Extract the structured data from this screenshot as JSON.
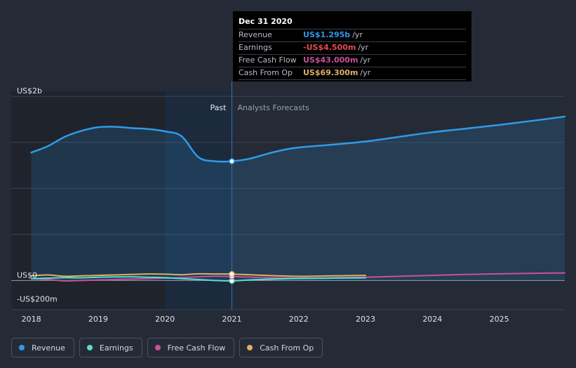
{
  "chart_data": {
    "type": "area",
    "divider_x": 2021.0,
    "past_label": "Past",
    "forecast_label": "Analysts Forecasts",
    "xlim": [
      2017.7,
      2025.98
    ],
    "ylim": [
      -318,
      2055
    ],
    "y_tick_labels": [
      {
        "value": 2000,
        "label": "US$2b"
      },
      {
        "value": 0,
        "label": "US$0"
      },
      {
        "value": -200,
        "label": "-US$200m"
      }
    ],
    "gridlines": [
      2000,
      1500,
      1000,
      500,
      0
    ],
    "x_ticks": [
      2018,
      2019,
      2020,
      2021,
      2022,
      2023,
      2024,
      2025
    ],
    "x_tick_labels": [
      "2018",
      "2019",
      "2020",
      "2021",
      "2022",
      "2023",
      "2024",
      "2025"
    ],
    "series": [
      {
        "name": "Revenue",
        "color": "#2f9be8",
        "points": [
          [
            2018.0,
            1390
          ],
          [
            2018.25,
            1460
          ],
          [
            2018.5,
            1560
          ],
          [
            2018.75,
            1625
          ],
          [
            2019.0,
            1665
          ],
          [
            2019.25,
            1670
          ],
          [
            2019.5,
            1655
          ],
          [
            2019.75,
            1645
          ],
          [
            2020.0,
            1620
          ],
          [
            2020.25,
            1565
          ],
          [
            2020.5,
            1340
          ],
          [
            2020.75,
            1295
          ],
          [
            2021.0,
            1295
          ],
          [
            2021.25,
            1320
          ],
          [
            2021.5,
            1370
          ],
          [
            2021.75,
            1415
          ],
          [
            2022.0,
            1445
          ],
          [
            2022.5,
            1475
          ],
          [
            2023.0,
            1510
          ],
          [
            2023.5,
            1560
          ],
          [
            2024.0,
            1610
          ],
          [
            2024.5,
            1650
          ],
          [
            2025.0,
            1690
          ],
          [
            2025.5,
            1735
          ],
          [
            2025.98,
            1780
          ]
        ]
      },
      {
        "name": "Earnings",
        "color": "#55e0cf",
        "points": [
          [
            2018.0,
            20
          ],
          [
            2018.25,
            25
          ],
          [
            2018.5,
            30
          ],
          [
            2018.75,
            28
          ],
          [
            2019.0,
            35
          ],
          [
            2019.25,
            38
          ],
          [
            2019.5,
            40
          ],
          [
            2019.75,
            35
          ],
          [
            2020.0,
            30
          ],
          [
            2020.25,
            20
          ],
          [
            2020.5,
            10
          ],
          [
            2020.75,
            0
          ],
          [
            2021.0,
            -4.5
          ],
          [
            2021.25,
            5
          ],
          [
            2021.5,
            12
          ],
          [
            2021.75,
            18
          ],
          [
            2022.0,
            22
          ],
          [
            2022.5,
            25
          ],
          [
            2023.0,
            28
          ]
        ]
      },
      {
        "name": "Free Cash Flow",
        "color": "#c9509a",
        "points": [
          [
            2018.0,
            20
          ],
          [
            2018.25,
            10
          ],
          [
            2018.5,
            -5
          ],
          [
            2018.75,
            0
          ],
          [
            2019.0,
            5
          ],
          [
            2019.25,
            10
          ],
          [
            2019.5,
            15
          ],
          [
            2019.75,
            20
          ],
          [
            2020.0,
            25
          ],
          [
            2020.25,
            30
          ],
          [
            2020.5,
            40
          ],
          [
            2020.75,
            45
          ],
          [
            2021.0,
            43
          ],
          [
            2021.5,
            30
          ],
          [
            2022.0,
            25
          ],
          [
            2022.5,
            28
          ],
          [
            2023.0,
            35
          ],
          [
            2023.5,
            45
          ],
          [
            2024.0,
            55
          ],
          [
            2024.5,
            65
          ],
          [
            2025.0,
            72
          ],
          [
            2025.98,
            82
          ]
        ]
      },
      {
        "name": "Cash From Op",
        "color": "#e0b063",
        "points": [
          [
            2018.0,
            50
          ],
          [
            2018.25,
            60
          ],
          [
            2018.5,
            45
          ],
          [
            2018.75,
            50
          ],
          [
            2019.0,
            55
          ],
          [
            2019.25,
            60
          ],
          [
            2019.5,
            65
          ],
          [
            2019.75,
            70
          ],
          [
            2020.0,
            68
          ],
          [
            2020.25,
            62
          ],
          [
            2020.5,
            72
          ],
          [
            2020.75,
            70
          ],
          [
            2021.0,
            69.3
          ],
          [
            2021.5,
            55
          ],
          [
            2022.0,
            45
          ],
          [
            2022.5,
            50
          ],
          [
            2023.0,
            55
          ]
        ]
      }
    ],
    "highlight_x": 2021.0
  },
  "tooltip": {
    "date": "Dec 31 2020",
    "rows": [
      {
        "label": "Revenue",
        "value": "US$1.295b",
        "unit": "/yr",
        "color": "#2f9be8"
      },
      {
        "label": "Earnings",
        "value": "-US$4.500m",
        "unit": "/yr",
        "color": "#e24b4b"
      },
      {
        "label": "Free Cash Flow",
        "value": "US$43.000m",
        "unit": "/yr",
        "color": "#c9509a"
      },
      {
        "label": "Cash From Op",
        "value": "US$69.300m",
        "unit": "/yr",
        "color": "#e0b063"
      }
    ]
  },
  "legend": [
    {
      "label": "Revenue",
      "color": "#2f9be8"
    },
    {
      "label": "Earnings",
      "color": "#55e0cf"
    },
    {
      "label": "Free Cash Flow",
      "color": "#c9509a"
    },
    {
      "label": "Cash From Op",
      "color": "#e0b063"
    }
  ]
}
